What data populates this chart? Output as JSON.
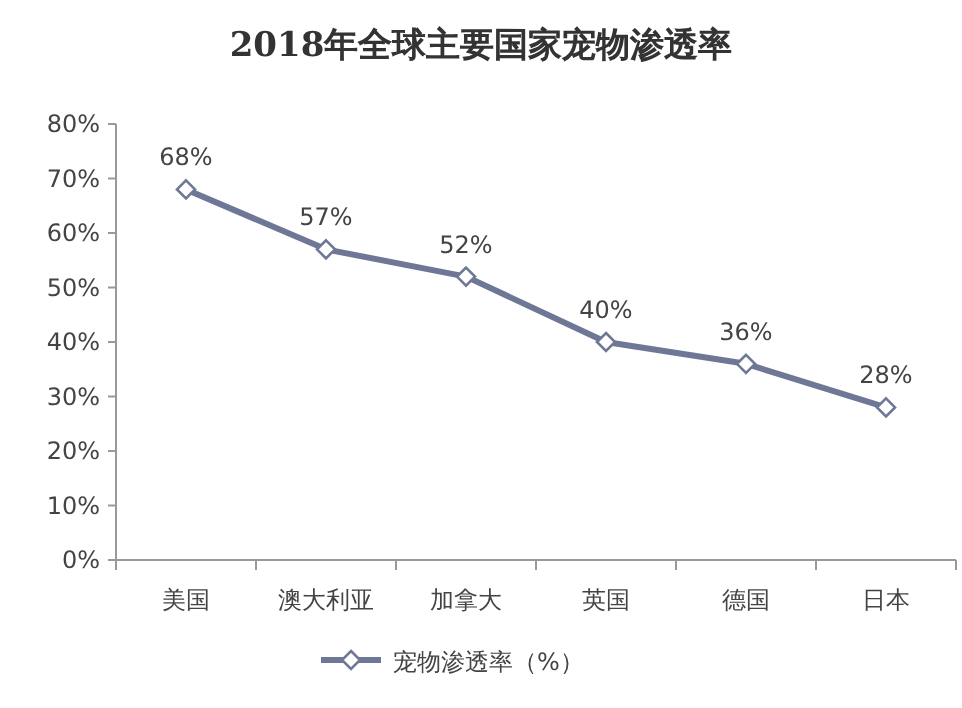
{
  "chart_data": {
    "type": "line",
    "title": "2018年全球主要国家宠物渗透率",
    "categories": [
      "美国",
      "澳大利亚",
      "加拿大",
      "英国",
      "德国",
      "日本"
    ],
    "series": [
      {
        "name": "宠物渗透率（%）",
        "color": "#6e7896",
        "values": [
          68,
          57,
          52,
          40,
          36,
          28
        ],
        "value_labels": [
          "68%",
          "57%",
          "52%",
          "40%",
          "36%",
          "28%"
        ]
      }
    ],
    "ylim": [
      0,
      80
    ],
    "yticks": [
      {
        "value": 0,
        "label": "0%"
      },
      {
        "value": 10,
        "label": "10%"
      },
      {
        "value": 20,
        "label": "20%"
      },
      {
        "value": 30,
        "label": "30%"
      },
      {
        "value": 40,
        "label": "40%"
      },
      {
        "value": 50,
        "label": "50%"
      },
      {
        "value": 60,
        "label": "60%"
      },
      {
        "value": 70,
        "label": "70%"
      },
      {
        "value": 80,
        "label": "80%"
      }
    ],
    "marker": "diamond",
    "legend": "bottom",
    "grid": false
  }
}
